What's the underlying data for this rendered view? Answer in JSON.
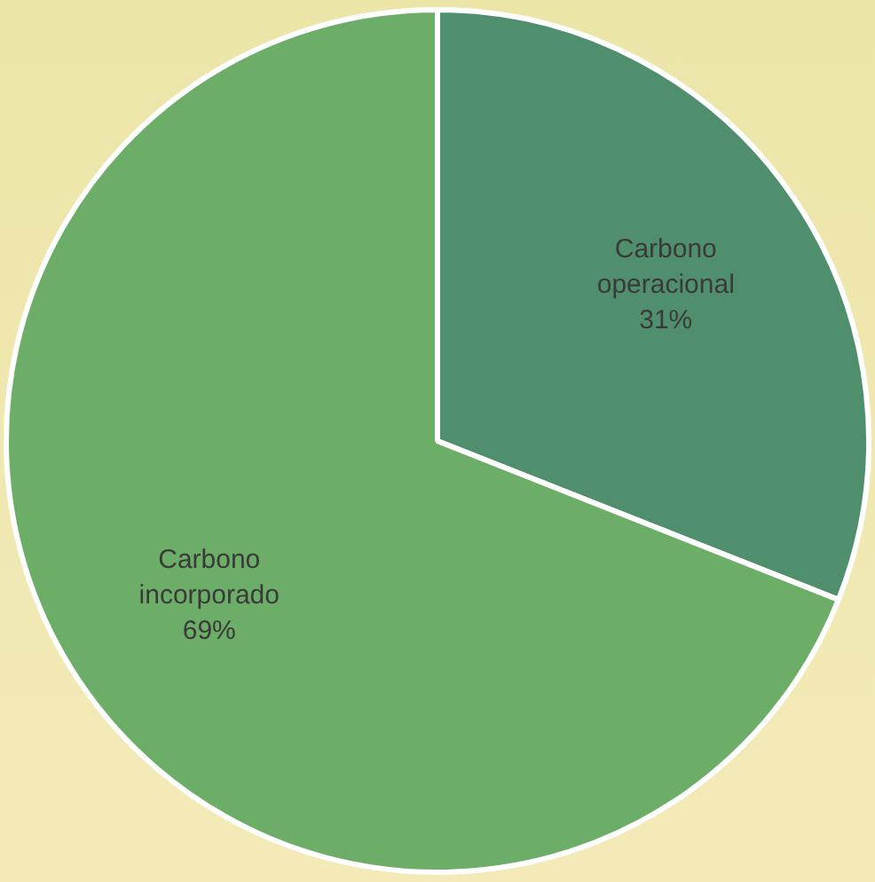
{
  "chart_data": {
    "type": "pie",
    "categories": [
      "Carbono operacional",
      "Carbono incorporado"
    ],
    "values": [
      31,
      69
    ],
    "colors": [
      "#4f8f6d",
      "#6cae67"
    ],
    "value_labels": [
      "31%",
      "69%"
    ],
    "legend": false
  }
}
